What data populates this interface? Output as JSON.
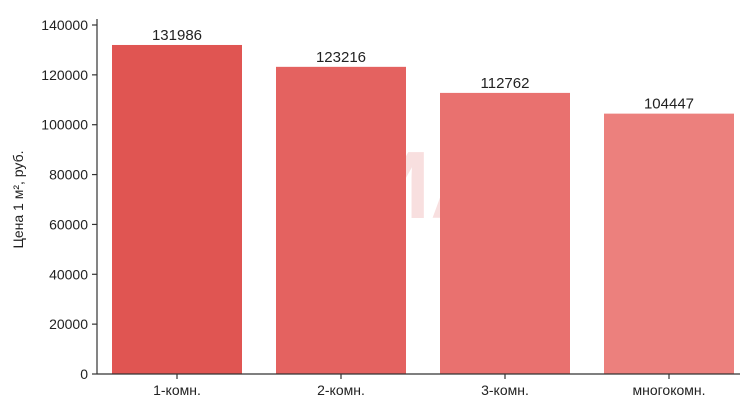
{
  "chart_data": {
    "type": "bar",
    "title": "",
    "xlabel": "",
    "ylabel": "Цена 1 м², руб.",
    "categories": [
      "1-комн.",
      "2-комн.",
      "3-комн.",
      "многокомн."
    ],
    "values": [
      131986,
      123216,
      112762,
      104447
    ],
    "data_labels": [
      "131986",
      "123216",
      "112762",
      "104447"
    ],
    "ylim": [
      0,
      140000
    ],
    "yticks": [
      0,
      20000,
      40000,
      60000,
      80000,
      100000,
      120000,
      140000
    ],
    "ytick_labels": [
      "0",
      "20000",
      "40000",
      "60000",
      "80000",
      "100000",
      "120000",
      "140000"
    ],
    "bar_colors": [
      "#e05552",
      "#e46260",
      "#e9716f",
      "#ec807d"
    ],
    "grid": false,
    "legend": "none"
  },
  "watermark": {
    "text": "ЦИАН"
  }
}
